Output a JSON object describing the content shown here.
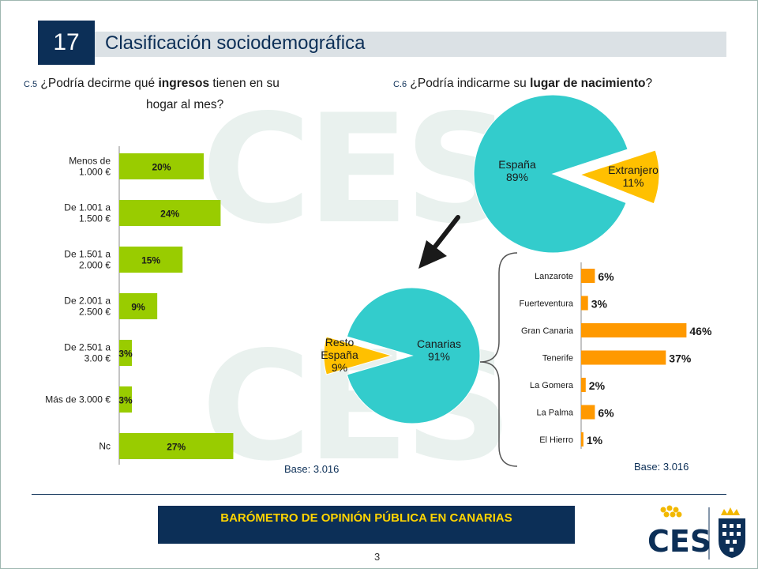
{
  "slide": {
    "number": "17",
    "title": "Clasificación sociodemográfica",
    "page": "3"
  },
  "q5": {
    "code": "C.5",
    "text_pre": " ¿Podría decirme qué ",
    "text_bold": "ingresos",
    "text_post": " tienen en su",
    "text_line2": "hogar al mes?"
  },
  "q6": {
    "code": "C.6",
    "text_pre": " ¿Podría indicarme su ",
    "text_bold": "lugar de nacimiento",
    "text_post": "?"
  },
  "bases": {
    "left": "Base: 3.016",
    "right": "Base: 3.016"
  },
  "footer": {
    "banner": "BARÓMETRO DE OPINIÓN PÚBLICA EN CANARIAS",
    "logo_text": "CES"
  },
  "colors": {
    "navy": "#0c2f57",
    "green": "#99cc00",
    "teal": "#33cccc",
    "orange": "#ff9900",
    "gold": "#ffc000",
    "yellow": "#ffd400"
  },
  "icons": {
    "arrow": "down-left-arrow-icon",
    "brace": "left-curly-brace-icon"
  },
  "chart_data": [
    {
      "type": "bar",
      "orientation": "horizontal",
      "categories": [
        [
          "Menos de",
          "1.000 €"
        ],
        [
          "De 1.001 a",
          "1.500 €"
        ],
        [
          "De 1.501 a",
          "2.000 €"
        ],
        [
          "De 2.001 a",
          "2.500 €"
        ],
        [
          "De 2.501 a",
          "3.00 €"
        ],
        [
          "Más de 3.000 €"
        ],
        [
          "Nc"
        ]
      ],
      "values": [
        20,
        24,
        15,
        9,
        3,
        3,
        27
      ],
      "value_labels": [
        "20%",
        "24%",
        "15%",
        "9%",
        "3%",
        "3%",
        "27%"
      ],
      "bar_color": "#99cc00"
    },
    {
      "type": "pie",
      "labels": [
        "España",
        "Extranjero"
      ],
      "values": [
        89,
        11
      ],
      "value_labels": [
        "89%",
        "11%"
      ],
      "colors": [
        "#33cccc",
        "#ffc000"
      ],
      "exploded": "Extranjero"
    },
    {
      "type": "pie",
      "labels": [
        "Canarias",
        "Resto España"
      ],
      "label_lines": [
        [
          "Canarias",
          "91%"
        ],
        [
          "Resto",
          "España",
          "9%"
        ]
      ],
      "values": [
        91,
        9
      ],
      "value_labels": [
        "91%",
        "9%"
      ],
      "colors": [
        "#33cccc",
        "#ffc000"
      ],
      "exploded": "Resto España"
    },
    {
      "type": "bar",
      "orientation": "horizontal",
      "categories": [
        "Lanzarote",
        "Fuerteventura",
        "Gran Canaria",
        "Tenerife",
        "La Gomera",
        "La Palma",
        "El Hierro"
      ],
      "values": [
        6,
        3,
        46,
        37,
        2,
        6,
        1
      ],
      "value_labels": [
        "6%",
        "3%",
        "46%",
        "37%",
        "2%",
        "6%",
        "1%"
      ],
      "bar_color": "#ff9900"
    }
  ]
}
